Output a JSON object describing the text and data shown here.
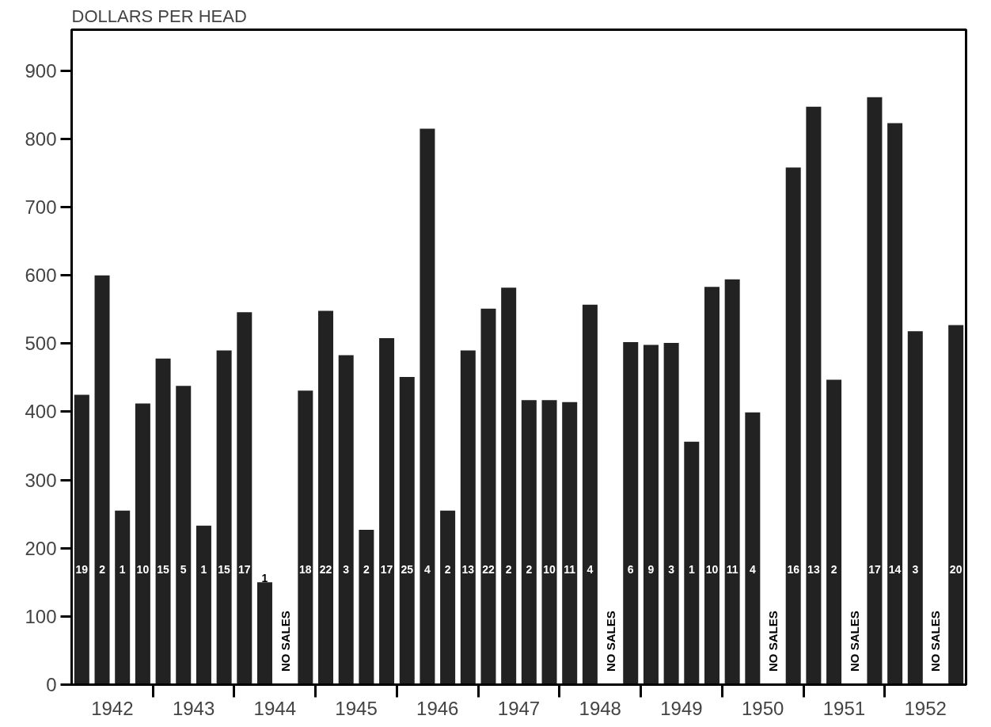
{
  "chart_data": {
    "type": "bar",
    "ylabel": "DOLLARS PER HEAD",
    "categories": [
      "1942",
      "1943",
      "1944",
      "1945",
      "1946",
      "1947",
      "1948",
      "1949",
      "1950",
      "1951",
      "1952"
    ],
    "series": [
      {
        "color": "#222222",
        "values": [
          425,
          478,
          546,
          548,
          451,
          551,
          414,
          498,
          594,
          847,
          823
        ]
      },
      {
        "color": "#222222",
        "values": [
          600,
          438,
          150,
          483,
          815,
          582,
          557,
          501,
          399,
          447,
          518
        ]
      },
      {
        "color": "#222222",
        "values": [
          255,
          233,
          null,
          227,
          255,
          417,
          null,
          356,
          null,
          null,
          null
        ]
      },
      {
        "color": "#222222",
        "values": [
          412,
          490,
          431,
          508,
          490,
          417,
          502,
          583,
          758,
          861,
          527
        ]
      }
    ],
    "annotations": [
      "19",
      "2",
      "1",
      "10",
      "15",
      "5",
      "1",
      "15",
      "17",
      "1",
      "NO SALES",
      "18",
      "22",
      "3",
      "2",
      "17",
      "25",
      "4",
      "2",
      "13",
      "22",
      "2",
      "2",
      "10",
      "11",
      "4",
      "NO SALES",
      "6",
      "9",
      "3",
      "1",
      "10",
      "11",
      "4",
      "NO SALES",
      "16",
      "13",
      "2",
      "NO SALES",
      "17",
      "14",
      "3",
      "NO SALES",
      "20"
    ],
    "ylim": [
      0,
      960
    ],
    "yticks": [
      0,
      100,
      200,
      300,
      400,
      500,
      600,
      700,
      800,
      900
    ]
  }
}
